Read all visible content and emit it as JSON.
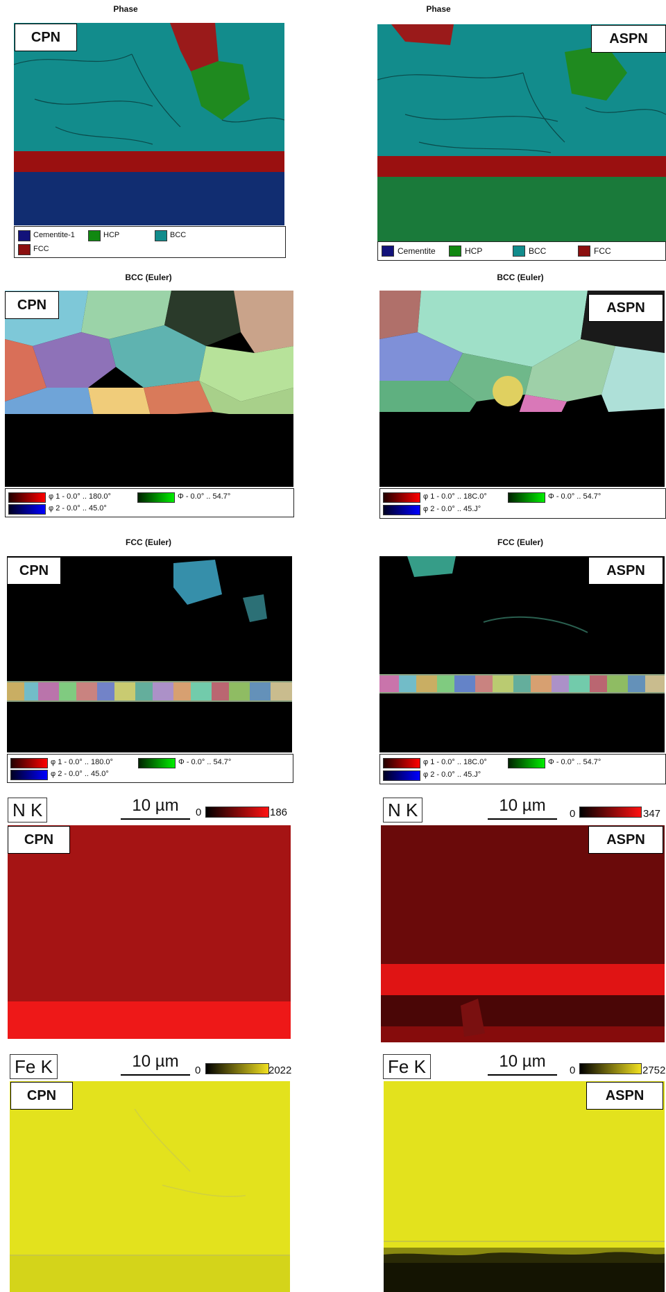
{
  "sections": {
    "phase_title": "Phase",
    "bcc_title": "BCC (Euler)",
    "fcc_title": "FCC (Euler)"
  },
  "samples": {
    "left": "CPN",
    "right": "ASPN"
  },
  "phase_legend_left": [
    "Cementite-1",
    "HCP",
    "BCC",
    "FCC"
  ],
  "phase_legend_right": [
    "Cementite",
    "HCP",
    "BCC",
    "FCC"
  ],
  "phase_colors": {
    "cementite": "#12127a",
    "hcp": "#118811",
    "bcc": "#128c8c",
    "fcc": "#8b0f0f"
  },
  "euler_legend_left": {
    "phi1": "φ 1 - 0.0° .. 180.0°",
    "Phi": "Φ - 0.0° .. 54.7°",
    "phi2": "φ 2 - 0.0° .. 45.0°"
  },
  "euler_legend_right": {
    "phi1": "φ 1 - 0.0° .. 18C.0°",
    "Phi": "Φ - 0.0° .. 54.7°",
    "phi2": "φ 2 - 0.0° .. 45.J°"
  },
  "euler_legend_fcc_right": {
    "phi1": "φ 1 - 0.0° .. 18C.0°",
    "Phi": "Φ - 0.0° .. 54.7°",
    "phi2": "φ 2 - 0.0° .. 45.J°"
  },
  "eds": {
    "scale_label": "10 µm",
    "nk": {
      "element": "N K",
      "left_min": "0",
      "left_max": "186",
      "right_min": "0",
      "right_max": "347"
    },
    "fek": {
      "element": "Fe K",
      "left_min": "0",
      "left_max": "2022",
      "right_min": "0",
      "right_max": "2752"
    }
  }
}
